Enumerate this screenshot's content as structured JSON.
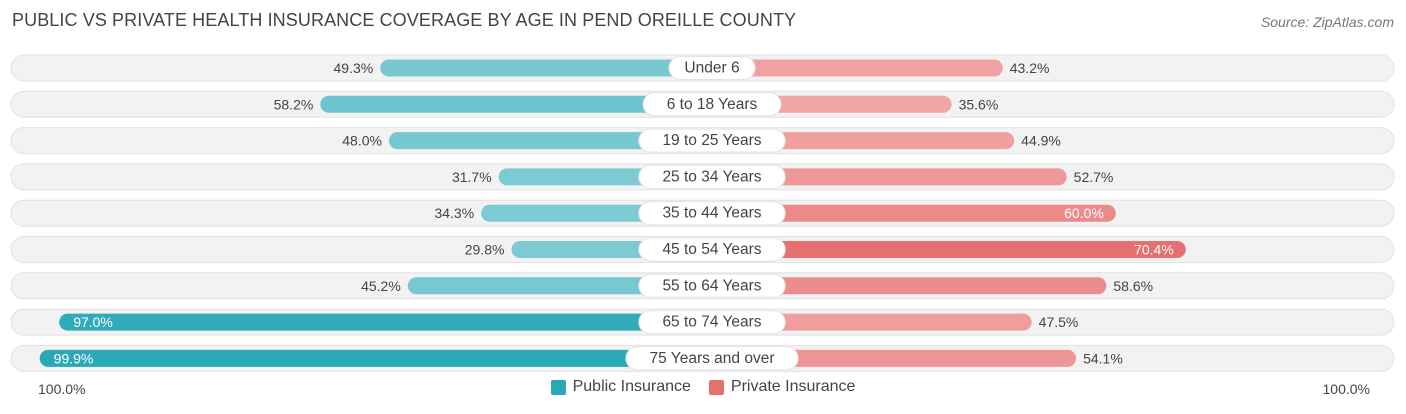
{
  "header": {
    "title": "PUBLIC VS PRIVATE HEALTH INSURANCE COVERAGE BY AGE IN PEND OREILLE COUNTY",
    "source": "Source: ZipAtlas.com"
  },
  "axis": {
    "left_label": "100.0%",
    "right_label": "100.0%"
  },
  "legend": {
    "public_label": "Public Insurance",
    "private_label": "Private Insurance"
  },
  "colors": {
    "public_dark": "#2aa8b8",
    "public_light": "#7fcbd3",
    "private_dark": "#e66f6f",
    "private_light": "#f2a9a9",
    "row_bg": "#f2f2f2"
  },
  "chart_data": {
    "type": "bar",
    "orientation": "horizontal-diverging",
    "title": "PUBLIC VS PRIVATE HEALTH INSURANCE COVERAGE BY AGE IN PEND OREILLE COUNTY",
    "categories": [
      "Under 6",
      "6 to 18 Years",
      "19 to 25 Years",
      "25 to 34 Years",
      "35 to 44 Years",
      "45 to 54 Years",
      "55 to 64 Years",
      "65 to 74 Years",
      "75 Years and over"
    ],
    "series": [
      {
        "name": "Public Insurance",
        "values": [
          49.3,
          58.2,
          48.0,
          31.7,
          34.3,
          29.8,
          45.2,
          97.0,
          99.9
        ],
        "labels": [
          "49.3%",
          "58.2%",
          "48.0%",
          "31.7%",
          "34.3%",
          "29.8%",
          "45.2%",
          "97.0%",
          "99.9%"
        ]
      },
      {
        "name": "Private Insurance",
        "values": [
          43.2,
          35.6,
          44.9,
          52.7,
          60.0,
          70.4,
          58.6,
          47.5,
          54.1
        ],
        "labels": [
          "43.2%",
          "35.6%",
          "44.9%",
          "52.7%",
          "60.0%",
          "70.4%",
          "58.6%",
          "47.5%",
          "54.1%"
        ]
      }
    ],
    "xlim": [
      -100,
      100
    ],
    "legend_position": "bottom-center"
  }
}
